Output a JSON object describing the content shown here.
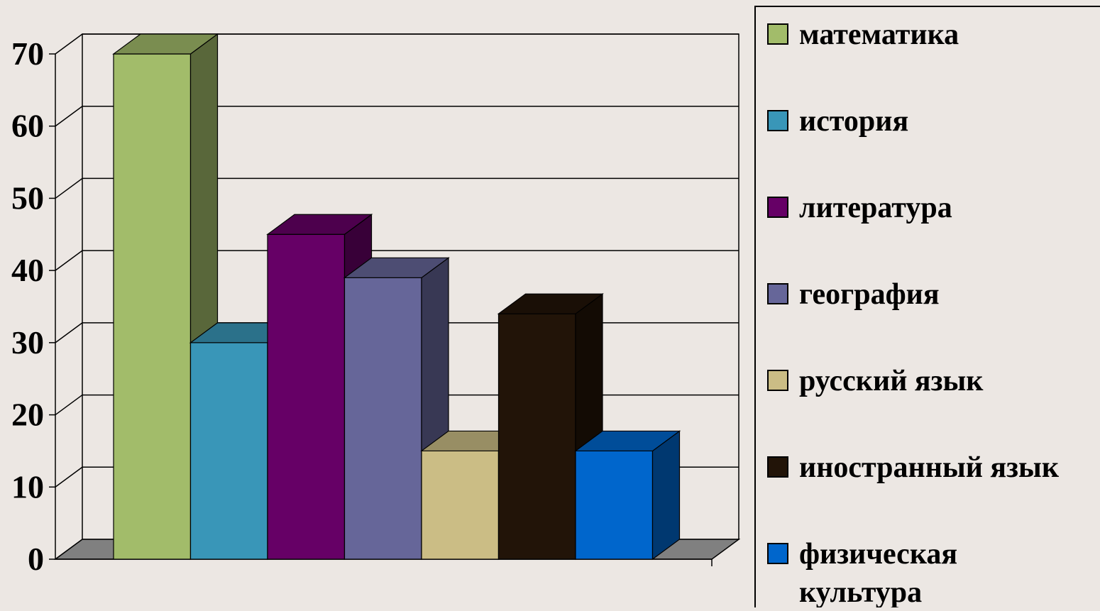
{
  "chart_data": {
    "type": "bar",
    "style": "3d-clustered-column",
    "title": "",
    "xlabel": "",
    "ylabel": "",
    "ylim": [
      0,
      70
    ],
    "yticks": [
      0,
      10,
      20,
      30,
      40,
      50,
      60,
      70
    ],
    "grid": true,
    "legend_position": "right",
    "background": "#ece7e3",
    "series": [
      {
        "name": "математика",
        "value": 70,
        "color": "#a2bc6a"
      },
      {
        "name": "история",
        "value": 30,
        "color": "#3996b8"
      },
      {
        "name": "литература",
        "value": 45,
        "color": "#660066"
      },
      {
        "name": "география",
        "value": 39,
        "color": "#666699"
      },
      {
        "name": "русский язык",
        "value": 15,
        "color": "#cbbd85"
      },
      {
        "name": "иностранный язык",
        "value": 34,
        "color": "#221408"
      },
      {
        "name": "физическая культура",
        "value": 15,
        "color": "#0066cc"
      }
    ]
  }
}
